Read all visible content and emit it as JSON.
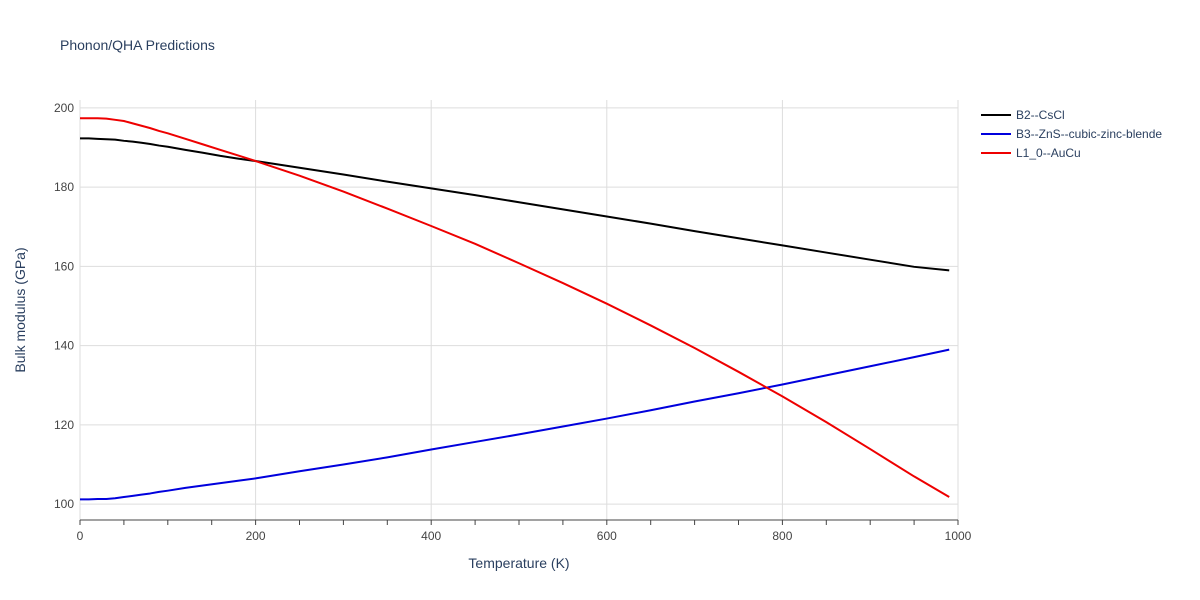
{
  "chart_data": {
    "type": "line",
    "title": "Phonon/QHA Predictions",
    "xlabel": "Temperature (K)",
    "ylabel": "Bulk modulus (GPa)",
    "xlim": [
      0,
      1000
    ],
    "ylim": [
      96,
      202
    ],
    "x_ticks": [
      0,
      200,
      400,
      600,
      800,
      1000
    ],
    "y_ticks": [
      100,
      120,
      140,
      160,
      180,
      200
    ],
    "grid": true,
    "legend_position": "top-right",
    "series": [
      {
        "name": "B2--CsCl",
        "color": "#000000",
        "x": [
          0,
          10,
          20,
          30,
          40,
          50,
          60,
          70,
          80,
          90,
          100,
          120,
          140,
          160,
          180,
          200,
          250,
          300,
          350,
          400,
          450,
          500,
          550,
          600,
          650,
          700,
          750,
          800,
          850,
          900,
          950,
          990
        ],
        "y": [
          192.3,
          192.3,
          192.2,
          192.1,
          192.0,
          191.7,
          191.5,
          191.2,
          190.9,
          190.5,
          190.2,
          189.4,
          188.7,
          187.9,
          187.2,
          186.6,
          184.9,
          183.2,
          181.4,
          179.7,
          178.0,
          176.2,
          174.4,
          172.6,
          170.8,
          168.9,
          167.1,
          165.3,
          163.5,
          161.7,
          159.9,
          159.0
        ]
      },
      {
        "name": "B3--ZnS--cubic-zinc-blende",
        "color": "#0000dd",
        "x": [
          0,
          10,
          20,
          30,
          40,
          50,
          60,
          70,
          80,
          90,
          100,
          120,
          140,
          160,
          180,
          200,
          250,
          300,
          350,
          400,
          450,
          500,
          550,
          600,
          650,
          700,
          750,
          800,
          850,
          900,
          950,
          990
        ],
        "y": [
          101.2,
          101.2,
          101.3,
          101.3,
          101.5,
          101.8,
          102.1,
          102.4,
          102.7,
          103.1,
          103.4,
          104.1,
          104.7,
          105.3,
          105.9,
          106.5,
          108.3,
          110.0,
          111.8,
          113.8,
          115.7,
          117.6,
          119.6,
          121.6,
          123.7,
          125.9,
          128.0,
          130.2,
          132.5,
          134.8,
          137.1,
          139.0
        ]
      },
      {
        "name": "L1_0--AuCu",
        "color": "#ee0000",
        "x": [
          0,
          10,
          20,
          30,
          40,
          50,
          60,
          70,
          80,
          90,
          100,
          120,
          140,
          160,
          180,
          200,
          250,
          300,
          350,
          400,
          450,
          500,
          550,
          600,
          650,
          700,
          750,
          800,
          850,
          900,
          950,
          990
        ],
        "y": [
          197.4,
          197.4,
          197.4,
          197.3,
          197.0,
          196.7,
          196.1,
          195.5,
          194.9,
          194.2,
          193.6,
          192.2,
          190.8,
          189.4,
          188.0,
          186.6,
          182.9,
          178.9,
          174.6,
          170.2,
          165.7,
          160.8,
          155.8,
          150.6,
          145.1,
          139.4,
          133.4,
          127.2,
          120.7,
          113.9,
          107.0,
          101.8
        ]
      }
    ]
  }
}
